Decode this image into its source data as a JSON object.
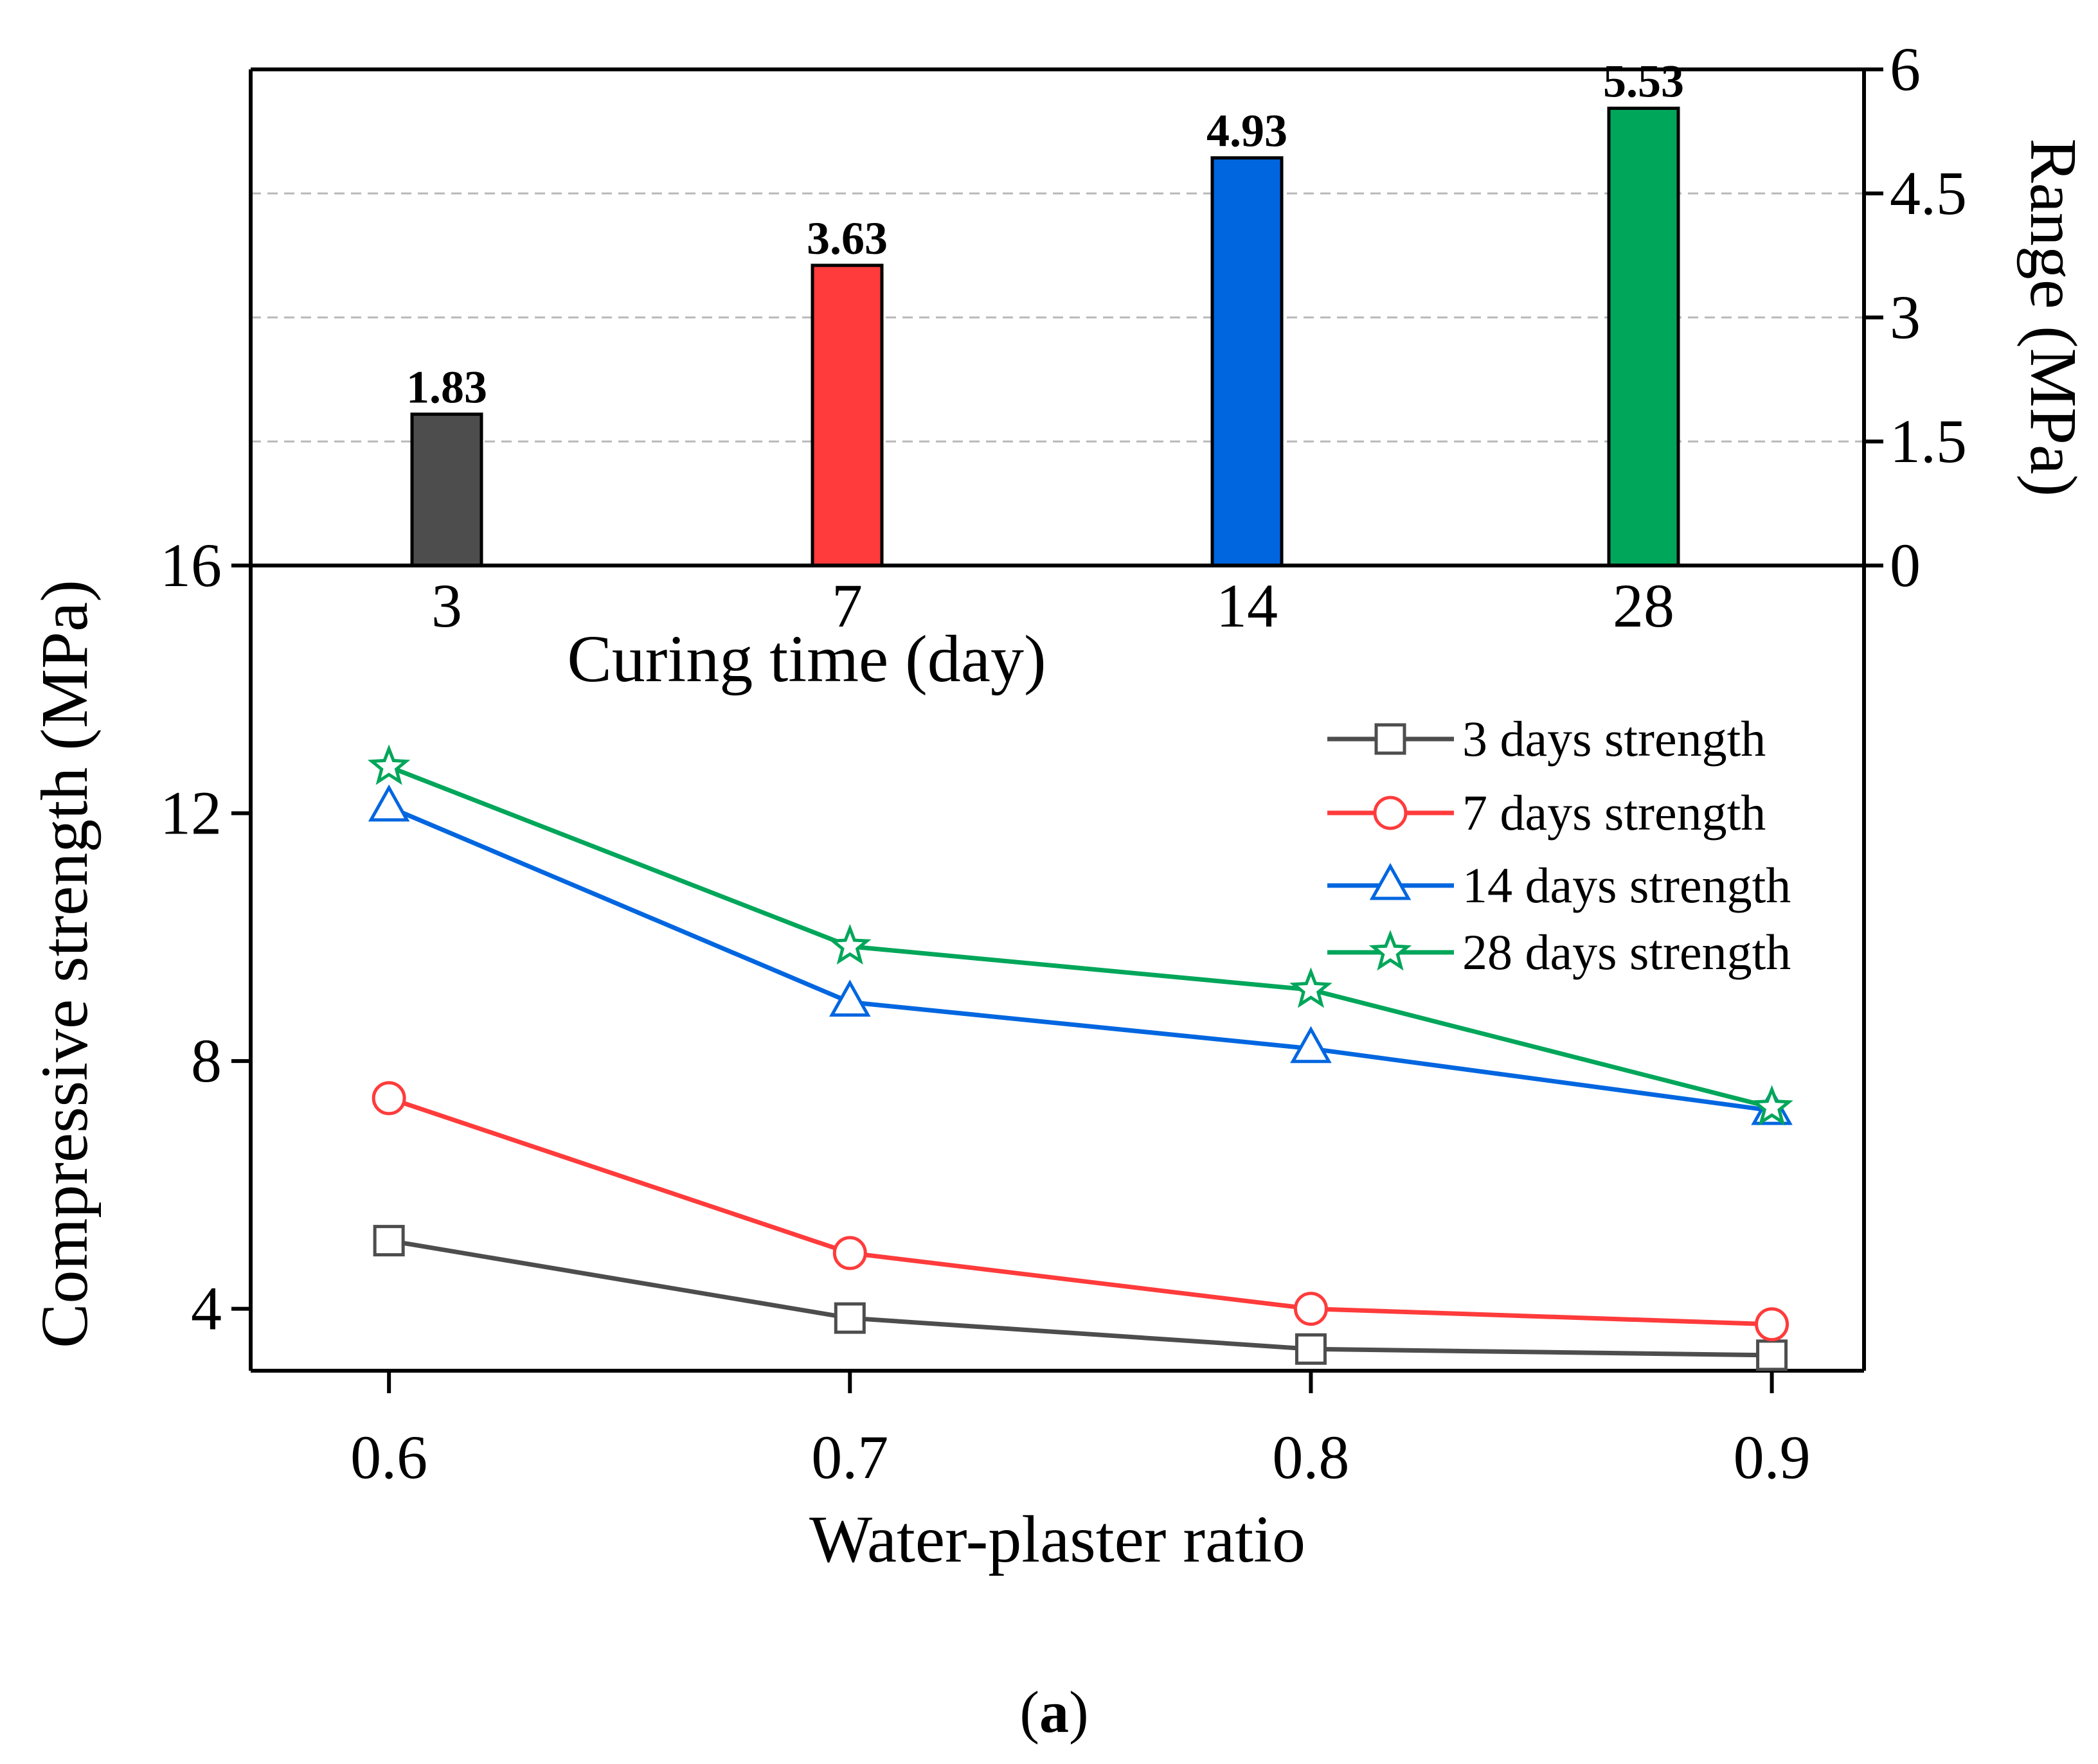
{
  "chart_data": [
    {
      "id": "bar",
      "type": "bar",
      "categories": [
        "3",
        "7",
        "14",
        "28"
      ],
      "values": [
        1.83,
        3.63,
        4.93,
        5.53
      ],
      "value_labels": [
        "1.83",
        "3.63",
        "4.93",
        "5.53"
      ],
      "colors": [
        "#4d4d4d",
        "#ff3b3b",
        "#0066e0",
        "#00a65a"
      ],
      "xlabel": "Curing time (day)",
      "ylabel": "Range (MPa)",
      "yaxis_side": "right",
      "ylim": [
        0,
        6
      ],
      "yticks": [
        0,
        1.5,
        3,
        4.5,
        6
      ],
      "ytick_labels": [
        "0",
        "1.5",
        "3",
        "4.5",
        "6"
      ],
      "grid": "dashed horizontal at 1.5, 3, 4.5"
    },
    {
      "id": "line",
      "type": "line",
      "x": [
        0.6,
        0.7,
        0.8,
        0.9
      ],
      "xtick_labels": [
        "0.6",
        "0.7",
        "0.8",
        "0.9"
      ],
      "xlim": [
        0.57,
        0.92
      ],
      "xlabel": "Water-plaster ratio",
      "ylabel": "Compressive strength (MPa)",
      "ylim": [
        3,
        16
      ],
      "yticks": [
        4,
        8,
        12,
        16
      ],
      "ytick_labels": [
        "4",
        "8",
        "12",
        "16"
      ],
      "legend_position": "top-right",
      "series": [
        {
          "name": "3 days strength",
          "values": [
            5.1,
            3.85,
            3.35,
            3.25
          ],
          "color": "#4d4d4d",
          "marker": "square"
        },
        {
          "name": "7 days strength",
          "values": [
            7.4,
            4.9,
            4.0,
            3.75
          ],
          "color": "#ff3b3b",
          "marker": "circle"
        },
        {
          "name": "14 days strength",
          "values": [
            12.1,
            8.95,
            8.2,
            7.2
          ],
          "color": "#0066e0",
          "marker": "triangle"
        },
        {
          "name": "28 days strength",
          "values": [
            12.75,
            9.85,
            9.15,
            7.25
          ],
          "color": "#00a65a",
          "marker": "star"
        }
      ]
    }
  ],
  "caption": {
    "open": "(",
    "letter": "a",
    "close": ")"
  }
}
